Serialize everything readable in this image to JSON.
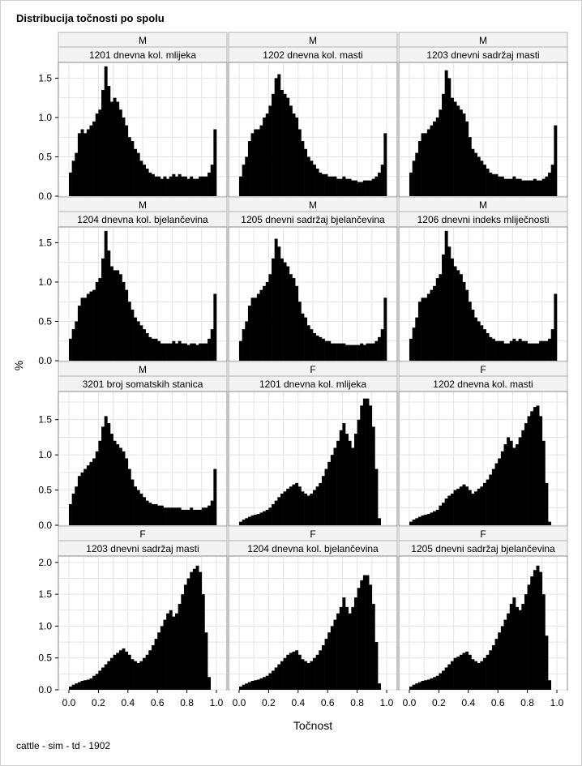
{
  "title": "Distribucija točnosti po spolu",
  "footnote": "cattle - sim - td - 1902",
  "chart_data": {
    "type": "bar",
    "xlabel": "Točnost",
    "ylabel": "%",
    "xlim": [
      0,
      1
    ],
    "xticks": [
      "0.0",
      "0.2",
      "0.4",
      "0.6",
      "0.8",
      "1.0"
    ],
    "x": [
      0.01,
      0.03,
      0.05,
      0.07,
      0.09,
      0.11,
      0.13,
      0.15,
      0.17,
      0.19,
      0.21,
      0.23,
      0.25,
      0.27,
      0.29,
      0.31,
      0.33,
      0.35,
      0.37,
      0.39,
      0.41,
      0.43,
      0.45,
      0.47,
      0.49,
      0.51,
      0.53,
      0.55,
      0.57,
      0.59,
      0.61,
      0.63,
      0.65,
      0.67,
      0.69,
      0.71,
      0.73,
      0.75,
      0.77,
      0.79,
      0.81,
      0.83,
      0.85,
      0.87,
      0.89,
      0.91,
      0.93,
      0.95,
      0.97,
      0.99
    ],
    "grid": true,
    "rows": [
      {
        "ylim": [
          0,
          1.7
        ],
        "yticks": [
          "0.0",
          "0.5",
          "1.0",
          "1.5"
        ],
        "panels": [
          {
            "sex": "M",
            "trait": "1201 dnevna kol. mlijeka",
            "values": [
              0.3,
              0.45,
              0.55,
              0.8,
              0.85,
              0.8,
              0.85,
              0.9,
              0.95,
              1.05,
              1.1,
              1.35,
              1.65,
              1.4,
              1.2,
              1.25,
              1.2,
              1.1,
              1.0,
              0.9,
              0.75,
              0.7,
              0.6,
              0.55,
              0.45,
              0.4,
              0.35,
              0.3,
              0.28,
              0.25,
              0.25,
              0.22,
              0.25,
              0.22,
              0.25,
              0.28,
              0.25,
              0.28,
              0.25,
              0.25,
              0.22,
              0.25,
              0.22,
              0.22,
              0.25,
              0.25,
              0.25,
              0.3,
              0.4,
              0.85
            ]
          },
          {
            "sex": "M",
            "trait": "1202 dnevna kol. masti",
            "values": [
              0.25,
              0.4,
              0.5,
              0.7,
              0.8,
              0.85,
              0.85,
              0.9,
              1.0,
              1.05,
              1.15,
              1.3,
              1.5,
              1.55,
              1.35,
              1.3,
              1.25,
              1.15,
              1.05,
              1.0,
              0.85,
              0.7,
              0.6,
              0.5,
              0.45,
              0.4,
              0.35,
              0.3,
              0.28,
              0.28,
              0.25,
              0.25,
              0.25,
              0.22,
              0.22,
              0.25,
              0.22,
              0.22,
              0.2,
              0.2,
              0.18,
              0.18,
              0.2,
              0.2,
              0.2,
              0.22,
              0.25,
              0.3,
              0.4,
              0.8
            ]
          },
          {
            "sex": "M",
            "trait": "1203 dnevni sadržaj masti",
            "values": [
              0.3,
              0.45,
              0.55,
              0.7,
              0.8,
              0.8,
              0.85,
              0.9,
              0.95,
              1.0,
              1.1,
              1.3,
              1.6,
              1.5,
              1.25,
              1.2,
              1.15,
              1.1,
              1.05,
              0.95,
              0.75,
              0.6,
              0.55,
              0.5,
              0.45,
              0.4,
              0.35,
              0.3,
              0.28,
              0.28,
              0.25,
              0.25,
              0.22,
              0.22,
              0.22,
              0.25,
              0.22,
              0.22,
              0.2,
              0.2,
              0.2,
              0.2,
              0.22,
              0.2,
              0.2,
              0.22,
              0.25,
              0.3,
              0.4,
              0.9
            ]
          }
        ]
      },
      {
        "ylim": [
          0,
          1.7
        ],
        "yticks": [
          "0.0",
          "0.5",
          "1.0",
          "1.5"
        ],
        "panels": [
          {
            "sex": "M",
            "trait": "1204 dnevna kol. bjelančevina",
            "values": [
              0.28,
              0.4,
              0.5,
              0.7,
              0.8,
              0.8,
              0.85,
              0.88,
              0.9,
              1.0,
              1.05,
              1.3,
              1.65,
              1.4,
              1.2,
              1.15,
              1.15,
              1.1,
              1.0,
              0.9,
              0.75,
              0.65,
              0.55,
              0.5,
              0.45,
              0.4,
              0.35,
              0.3,
              0.28,
              0.28,
              0.25,
              0.22,
              0.22,
              0.22,
              0.22,
              0.25,
              0.22,
              0.25,
              0.22,
              0.22,
              0.2,
              0.22,
              0.22,
              0.2,
              0.22,
              0.22,
              0.22,
              0.28,
              0.4,
              0.85
            ]
          },
          {
            "sex": "M",
            "trait": "1205 dnevni sadržaj bjelančevina",
            "values": [
              0.25,
              0.4,
              0.5,
              0.7,
              0.8,
              0.8,
              0.85,
              0.9,
              0.95,
              1.0,
              1.1,
              1.3,
              1.55,
              1.45,
              1.3,
              1.25,
              1.2,
              1.1,
              1.05,
              0.95,
              0.75,
              0.6,
              0.55,
              0.45,
              0.4,
              0.35,
              0.32,
              0.3,
              0.28,
              0.25,
              0.25,
              0.22,
              0.22,
              0.22,
              0.22,
              0.22,
              0.2,
              0.2,
              0.2,
              0.2,
              0.2,
              0.22,
              0.2,
              0.22,
              0.22,
              0.22,
              0.25,
              0.3,
              0.4,
              0.8
            ]
          },
          {
            "sex": "M",
            "trait": "1206 dnevni indeks mliječnosti",
            "values": [
              0.28,
              0.42,
              0.55,
              0.75,
              0.8,
              0.8,
              0.85,
              0.9,
              0.95,
              1.05,
              1.1,
              1.35,
              1.65,
              1.45,
              1.3,
              1.2,
              1.15,
              1.1,
              1.0,
              0.9,
              0.75,
              0.65,
              0.55,
              0.5,
              0.45,
              0.4,
              0.35,
              0.3,
              0.28,
              0.25,
              0.25,
              0.25,
              0.22,
              0.22,
              0.25,
              0.28,
              0.25,
              0.28,
              0.25,
              0.25,
              0.22,
              0.22,
              0.22,
              0.22,
              0.25,
              0.25,
              0.25,
              0.28,
              0.4,
              0.85
            ]
          }
        ]
      },
      {
        "ylim": [
          0,
          1.9
        ],
        "yticks": [
          "0.0",
          "0.5",
          "1.0",
          "1.5"
        ],
        "panels": [
          {
            "sex": "M",
            "trait": "3201 broj somatskih stanica",
            "values": [
              0.3,
              0.45,
              0.55,
              0.7,
              0.75,
              0.8,
              0.85,
              0.9,
              0.95,
              1.05,
              1.2,
              1.4,
              1.55,
              1.45,
              1.3,
              1.2,
              1.15,
              1.1,
              1.05,
              0.95,
              0.8,
              0.65,
              0.55,
              0.5,
              0.45,
              0.4,
              0.35,
              0.32,
              0.3,
              0.3,
              0.28,
              0.28,
              0.25,
              0.25,
              0.25,
              0.25,
              0.25,
              0.25,
              0.22,
              0.22,
              0.22,
              0.25,
              0.22,
              0.22,
              0.22,
              0.25,
              0.25,
              0.28,
              0.35,
              0.8
            ]
          },
          {
            "sex": "F",
            "trait": "1201 dnevna kol. mlijeka",
            "values": [
              0.05,
              0.08,
              0.1,
              0.12,
              0.14,
              0.15,
              0.16,
              0.18,
              0.2,
              0.22,
              0.25,
              0.3,
              0.35,
              0.4,
              0.45,
              0.48,
              0.52,
              0.55,
              0.58,
              0.6,
              0.55,
              0.48,
              0.45,
              0.42,
              0.45,
              0.5,
              0.55,
              0.6,
              0.7,
              0.8,
              0.9,
              1.0,
              1.1,
              1.2,
              1.35,
              1.45,
              1.3,
              1.2,
              1.1,
              1.3,
              1.5,
              1.7,
              1.8,
              1.8,
              1.7,
              1.4,
              0.8,
              0.1,
              0.0,
              0.0
            ]
          },
          {
            "sex": "F",
            "trait": "1202 dnevna kol. masti",
            "values": [
              0.05,
              0.08,
              0.1,
              0.12,
              0.14,
              0.15,
              0.16,
              0.18,
              0.2,
              0.22,
              0.28,
              0.32,
              0.38,
              0.42,
              0.45,
              0.5,
              0.52,
              0.55,
              0.58,
              0.55,
              0.5,
              0.45,
              0.48,
              0.52,
              0.55,
              0.6,
              0.65,
              0.72,
              0.8,
              0.88,
              0.95,
              1.05,
              1.15,
              1.25,
              1.2,
              1.1,
              1.15,
              1.25,
              1.35,
              1.45,
              1.55,
              1.62,
              1.68,
              1.7,
              1.55,
              1.2,
              0.6,
              0.05,
              0.0,
              0.0
            ]
          }
        ]
      },
      {
        "ylim": [
          0,
          2.1
        ],
        "yticks": [
          "0.0",
          "0.5",
          "1.0",
          "1.5",
          "2.0"
        ],
        "panels": [
          {
            "sex": "F",
            "trait": "1203 dnevni sadržaj masti",
            "values": [
              0.05,
              0.08,
              0.1,
              0.12,
              0.14,
              0.15,
              0.16,
              0.18,
              0.22,
              0.25,
              0.3,
              0.35,
              0.4,
              0.45,
              0.5,
              0.55,
              0.58,
              0.62,
              0.65,
              0.6,
              0.55,
              0.48,
              0.45,
              0.42,
              0.45,
              0.5,
              0.55,
              0.62,
              0.7,
              0.8,
              0.9,
              1.0,
              1.1,
              1.2,
              1.25,
              1.15,
              1.2,
              1.35,
              1.5,
              1.65,
              1.75,
              1.85,
              1.9,
              1.95,
              1.85,
              1.5,
              0.9,
              0.2,
              0.0,
              0.0
            ]
          },
          {
            "sex": "F",
            "trait": "1204 dnevna kol. bjelančevina",
            "values": [
              0.05,
              0.08,
              0.1,
              0.12,
              0.14,
              0.15,
              0.16,
              0.18,
              0.2,
              0.22,
              0.26,
              0.3,
              0.35,
              0.4,
              0.45,
              0.5,
              0.55,
              0.58,
              0.6,
              0.62,
              0.55,
              0.48,
              0.45,
              0.42,
              0.45,
              0.5,
              0.55,
              0.62,
              0.7,
              0.8,
              0.9,
              1.0,
              1.1,
              1.2,
              1.3,
              1.45,
              1.3,
              1.2,
              1.3,
              1.45,
              1.6,
              1.72,
              1.8,
              1.8,
              1.65,
              1.35,
              0.75,
              0.1,
              0.0,
              0.0
            ]
          },
          {
            "sex": "F",
            "trait": "1205 dnevni sadržaj bjelančevina",
            "values": [
              0.05,
              0.08,
              0.1,
              0.12,
              0.14,
              0.15,
              0.16,
              0.18,
              0.2,
              0.22,
              0.26,
              0.3,
              0.35,
              0.4,
              0.45,
              0.5,
              0.52,
              0.55,
              0.58,
              0.6,
              0.55,
              0.48,
              0.45,
              0.42,
              0.45,
              0.5,
              0.55,
              0.62,
              0.7,
              0.8,
              0.9,
              1.0,
              1.1,
              1.2,
              1.35,
              1.45,
              1.3,
              1.25,
              1.35,
              1.5,
              1.65,
              1.78,
              1.88,
              1.95,
              1.85,
              1.5,
              0.85,
              0.15,
              0.0,
              0.0
            ]
          }
        ]
      }
    ]
  }
}
